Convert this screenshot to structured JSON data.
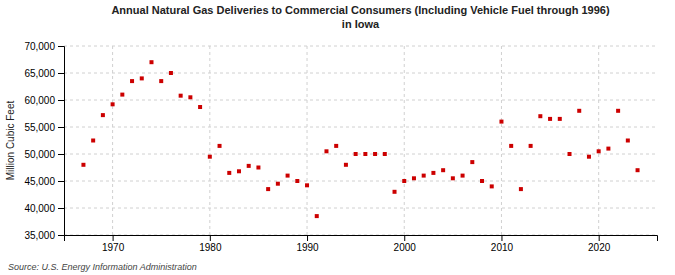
{
  "chart_data": {
    "type": "scatter",
    "title": "Annual Natural Gas Deliveries to Commercial Consumers (Including Vehicle Fuel through 1996)\nin Iowa",
    "ylabel": "Million Cubic Feet",
    "annotations": [
      "Source: U.S. Energy Information Administration"
    ],
    "x": [
      1967,
      1968,
      1969,
      1970,
      1971,
      1972,
      1973,
      1974,
      1975,
      1976,
      1977,
      1978,
      1979,
      1980,
      1981,
      1982,
      1983,
      1984,
      1985,
      1986,
      1987,
      1988,
      1989,
      1990,
      1991,
      1992,
      1993,
      1994,
      1995,
      1996,
      1997,
      1998,
      1999,
      2000,
      2001,
      2002,
      2003,
      2004,
      2005,
      2006,
      2007,
      2008,
      2009,
      2010,
      2011,
      2012,
      2013,
      2014,
      2015,
      2016,
      2017,
      2018,
      2019,
      2020,
      2021,
      2022,
      2023,
      2024
    ],
    "values": [
      48000,
      52500,
      57200,
      59200,
      61000,
      63500,
      64000,
      67000,
      63500,
      65000,
      60800,
      60500,
      58700,
      49500,
      51500,
      46500,
      46800,
      47800,
      47500,
      43500,
      44500,
      46000,
      45000,
      44200,
      38500,
      50500,
      51500,
      48000,
      50000,
      50000,
      50000,
      50000,
      43000,
      45000,
      45500,
      46000,
      46500,
      47000,
      45500,
      46000,
      48500,
      45000,
      44000,
      56000,
      51500,
      43500,
      51500,
      57000,
      56500,
      56500,
      50000,
      58000,
      49500,
      50500,
      51000,
      58000,
      52500,
      47000
    ],
    "color": "#cc0000",
    "marker": "square",
    "xlim": [
      1965,
      2026
    ],
    "xticks": [
      1970,
      1980,
      1990,
      2000,
      2010,
      2020
    ],
    "ylim": [
      35000,
      70000
    ],
    "yticks": [
      {
        "value": 35000,
        "label": "35,000"
      },
      {
        "value": 40000,
        "label": "40,000"
      },
      {
        "value": 45000,
        "label": "45,000"
      },
      {
        "value": 50000,
        "label": "50,000"
      },
      {
        "value": 55000,
        "label": "55,000"
      },
      {
        "value": 60000,
        "label": "60,000"
      },
      {
        "value": 65000,
        "label": "65,000"
      },
      {
        "value": 70000,
        "label": "70,000"
      }
    ],
    "grid": true
  }
}
